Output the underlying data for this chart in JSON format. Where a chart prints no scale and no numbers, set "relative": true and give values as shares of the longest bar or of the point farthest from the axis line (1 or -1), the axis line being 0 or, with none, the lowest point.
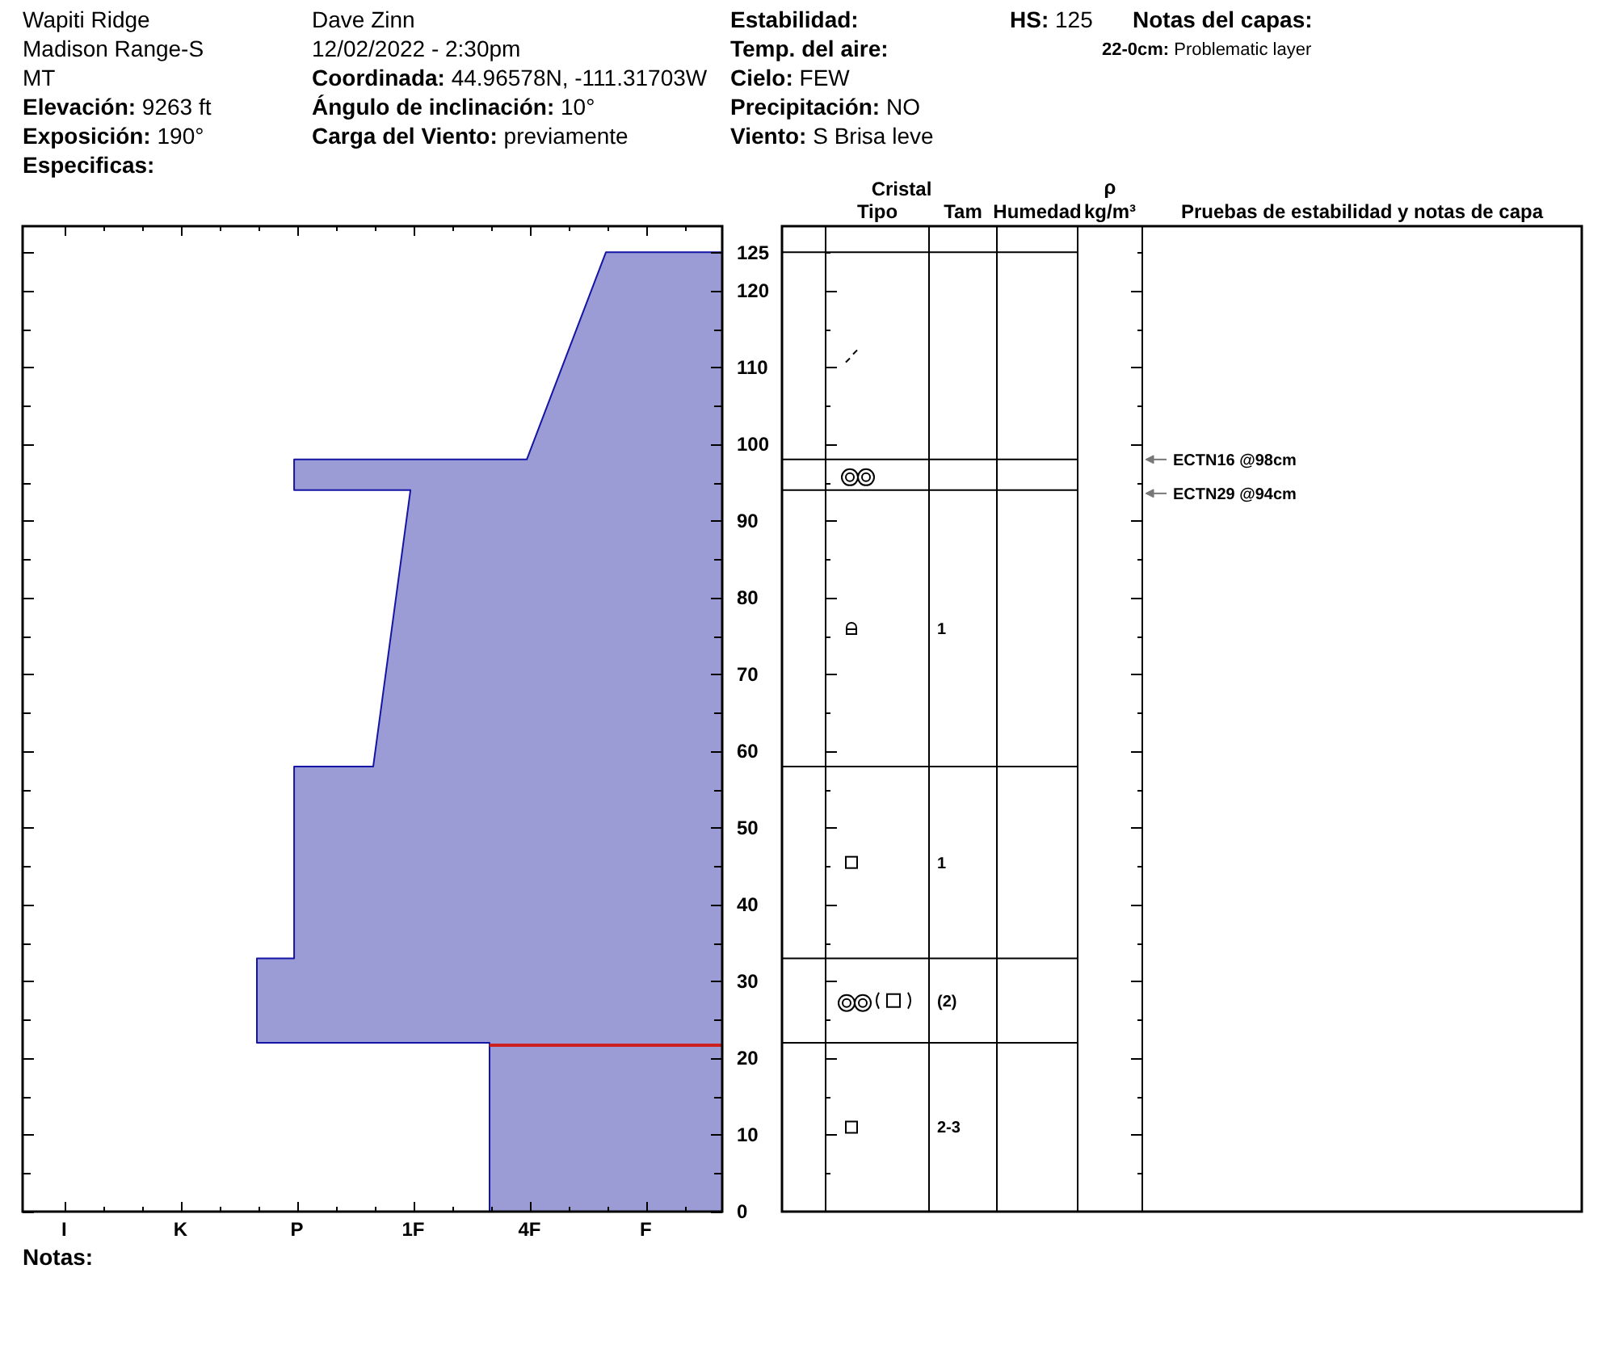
{
  "chart_data": [
    {
      "type": "area",
      "orientation": "horizontal",
      "relative": true,
      "x": [
        0,
        22,
        22,
        33,
        33,
        58,
        58,
        94,
        94,
        98,
        98,
        125
      ],
      "values": [
        -0.5,
        -0.5,
        -1,
        -1,
        -0.92,
        -0.92,
        -0.75,
        -0.67,
        -0.92,
        -0.92,
        -0.42,
        -0.25
      ],
      "color": "#9b9bd5",
      "ylim": [
        0,
        128.4
      ],
      "yticks": [
        0,
        {
          "value": 5,
          "label": null
        },
        10,
        {
          "value": 15,
          "label": null
        },
        20,
        {
          "value": 25,
          "label": null
        },
        30,
        {
          "value": 35,
          "label": null
        },
        40,
        {
          "value": 45,
          "label": null
        },
        50,
        {
          "value": 55,
          "label": null
        },
        60,
        {
          "value": 65,
          "label": null
        },
        70,
        {
          "value": 75,
          "label": null
        },
        80,
        {
          "value": 85,
          "label": null
        },
        90,
        {
          "value": 95,
          "label": null
        },
        100,
        {
          "value": 105,
          "label": null
        },
        110,
        {
          "value": 115,
          "label": null
        },
        120,
        125
      ],
      "ref_lines": [
        {
          "axis": "y",
          "value": 22,
          "color": "#cc2020"
        }
      ],
      "annotations": [
        "Wapiti Ridge",
        "Madison Range-S",
        "MT",
        "Elevación: 9263 ft",
        "Exposición: 190°",
        "Especificas:",
        "Dave Zinn",
        "12/02/2022 - 2:30pm",
        "Coordinada: 44.96578N, -111.31703W",
        "Ángulo de inclinación: 10°",
        "Carga del Viento: previamente",
        "Estabilidad:",
        "Temp. del aire:",
        "Cielo: FEW",
        "Precipitación: NO",
        "Viento: S Brisa leve",
        "HS: 125",
        "Notas del capas:",
        "22-0cm: Problematic layer",
        "Notas:",
        "I",
        "K",
        "P",
        "1F",
        "4F",
        "F"
      ]
    },
    {
      "type": "other",
      "title": "Cristal",
      "categories": [
        null,
        "Tipo",
        "Tam",
        "Humedad",
        "ρ kg/m³",
        "Pruebas de estabilidad y notas de capa"
      ],
      "annotations": [
        "1",
        "1",
        "(2)",
        "2-3",
        "ECTN16 @98cm",
        "ECTN29 @94cm"
      ]
    }
  ]
}
